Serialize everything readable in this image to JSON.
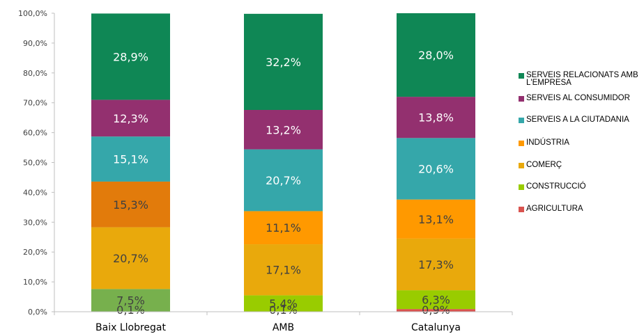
{
  "chart_data": {
    "type": "bar",
    "stacked": true,
    "percent": true,
    "categories": [
      "Baix Llobregat",
      "AMB",
      "Catalunya"
    ],
    "ylim": [
      0,
      100
    ],
    "yticks": [
      "0,0%",
      "10,0%",
      "20,0%",
      "30,0%",
      "40,0%",
      "50,0%",
      "60,0%",
      "70,0%",
      "80,0%",
      "90,0%",
      "100,0%"
    ],
    "legend_position": "right",
    "series": [
      {
        "name": "AGRICULTURA",
        "color": "#d9534f",
        "values": [
          0.1,
          0.1,
          0.9
        ],
        "labels": [
          "0,1%",
          "0,1%",
          "0,9%"
        ],
        "bar_colors": [
          "#d9534f",
          "#d9534f",
          "#d9534f"
        ]
      },
      {
        "name": "CONSTRUCCIÓ",
        "color": "#99cc00",
        "values": [
          7.5,
          5.4,
          6.3
        ],
        "labels": [
          "7,5%",
          "5,4%",
          "6,3%"
        ],
        "bar_colors": [
          "#77b04d",
          "#99cc00",
          "#99cc00"
        ]
      },
      {
        "name": "COMERÇ",
        "color": "#e9a90c",
        "values": [
          20.7,
          17.1,
          17.3
        ],
        "labels": [
          "20,7%",
          "17,1%",
          "17,3%"
        ],
        "bar_colors": [
          "#e9a90c",
          "#e9a90c",
          "#e9a90c"
        ]
      },
      {
        "name": "INDÚSTRIA",
        "color": "#ff9900",
        "values": [
          15.3,
          11.1,
          13.1
        ],
        "labels": [
          "15,3%",
          "11,1%",
          "13,1%"
        ],
        "bar_colors": [
          "#e27b0b",
          "#ff9900",
          "#ff9900"
        ]
      },
      {
        "name": "SERVEIS A LA CIUTADANIA",
        "color": "#35a7aa",
        "values": [
          15.1,
          20.7,
          20.6
        ],
        "labels": [
          "15,1%",
          "20,7%",
          "20,6%"
        ],
        "bar_colors": [
          "#35a7aa",
          "#35a7aa",
          "#35a7aa"
        ]
      },
      {
        "name": "SERVEIS AL CONSUMIDOR",
        "color": "#93306f",
        "values": [
          12.3,
          13.2,
          13.8
        ],
        "labels": [
          "12,3%",
          "13,2%",
          "13,8%"
        ],
        "bar_colors": [
          "#93306f",
          "#93306f",
          "#93306f"
        ]
      },
      {
        "name": "SERVEIS RELACIONATS AMB L'EMPRESA",
        "color": "#0f8755",
        "values": [
          28.9,
          32.2,
          28.0
        ],
        "labels": [
          "28,9%",
          "32,2%",
          "28,0%"
        ],
        "bar_colors": [
          "#0f8755",
          "#0f8755",
          "#0f8755"
        ]
      }
    ],
    "legend_order": [
      "SERVEIS RELACIONATS AMB L'EMPRESA",
      "SERVEIS AL CONSUMIDOR",
      "SERVEIS A LA CIUTADANIA",
      "INDÚSTRIA",
      "COMERÇ",
      "CONSTRUCCIÓ",
      "AGRICULTURA"
    ]
  }
}
